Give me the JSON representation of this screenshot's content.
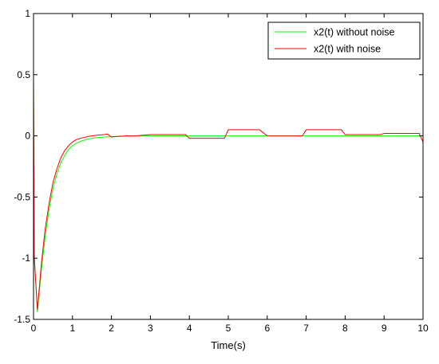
{
  "chart_data": {
    "type": "line",
    "xlabel": "Time(s)",
    "ylabel": "",
    "title": "",
    "xlim": [
      0,
      10
    ],
    "ylim": [
      -1.5,
      1
    ],
    "xticks": [
      0,
      1,
      2,
      3,
      4,
      5,
      6,
      7,
      8,
      9,
      10
    ],
    "yticks": [
      -1.5,
      -1,
      -0.5,
      0,
      0.5,
      1
    ],
    "xtick_labels": [
      "0",
      "1",
      "2",
      "3",
      "4",
      "5",
      "6",
      "7",
      "8",
      "9",
      "10"
    ],
    "ytick_labels": [
      "-1.5",
      "-1",
      "-0.5",
      "0",
      "0.5",
      "1"
    ],
    "grid": false,
    "legend_position": "top-right",
    "series": [
      {
        "name": "x2(t) without noise",
        "color": "#00ff00",
        "x": [
          0,
          0.02,
          0.1,
          0.2,
          0.3,
          0.4,
          0.5,
          0.6,
          0.7,
          0.8,
          0.9,
          1.0,
          1.1,
          1.2,
          1.4,
          1.6,
          1.8,
          2.0,
          2.5,
          3.0,
          4.0,
          5.0,
          6.0,
          7.0,
          8.0,
          9.0,
          10.0
        ],
        "y": [
          0.45,
          -1.0,
          -1.44,
          -1.1,
          -0.82,
          -0.6,
          -0.43,
          -0.31,
          -0.22,
          -0.16,
          -0.11,
          -0.08,
          -0.06,
          -0.045,
          -0.025,
          -0.015,
          -0.01,
          -0.006,
          -0.002,
          0,
          0,
          0,
          0,
          0,
          0,
          0,
          0
        ]
      },
      {
        "name": "x2(t) with noise",
        "color": "#ff0000",
        "x": [
          0,
          0.02,
          0.1,
          0.2,
          0.3,
          0.4,
          0.5,
          0.6,
          0.7,
          0.8,
          0.9,
          1.0,
          1.1,
          1.2,
          1.4,
          1.6,
          1.8,
          1.9,
          2.0,
          2.1,
          2.4,
          2.6,
          3.0,
          3.5,
          3.9,
          4.0,
          4.1,
          4.5,
          4.9,
          5.0,
          5.1,
          5.5,
          5.8,
          6.0,
          6.9,
          7.0,
          7.1,
          7.5,
          7.9,
          8.0,
          8.1,
          8.5,
          8.9,
          9.0,
          9.1,
          9.5,
          9.9,
          10.0
        ],
        "y": [
          0.46,
          -1.0,
          -1.42,
          -1.05,
          -0.76,
          -0.55,
          -0.38,
          -0.27,
          -0.18,
          -0.12,
          -0.08,
          -0.05,
          -0.03,
          -0.02,
          -0.005,
          0.005,
          0.01,
          0.015,
          -0.01,
          -0.005,
          0,
          0,
          0.01,
          0.01,
          0.01,
          -0.02,
          -0.02,
          -0.02,
          -0.02,
          0.05,
          0.05,
          0.05,
          0.05,
          0,
          0,
          0.05,
          0.05,
          0.05,
          0.05,
          0.01,
          0.01,
          0.01,
          0.01,
          0.02,
          0.02,
          0.02,
          0.02,
          -0.05
        ]
      }
    ]
  }
}
